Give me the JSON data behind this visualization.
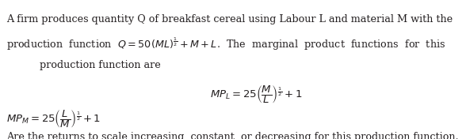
{
  "bg_color": "#ffffff",
  "text_color": "#231f20",
  "figsize": [
    5.93,
    1.76
  ],
  "dpi": 100,
  "line1": "A firm produces quantity Q of breakfast cereal using Labour L and material M with the",
  "line2": "production  function  $Q = 50(ML)^{\\frac{1}{2}} + M + L$.  The  marginal  product  functions  for  this",
  "line3": "production function are",
  "MPL_label": "$MP_L = 25\\left(\\dfrac{M}{L}\\right)^{\\frac{1}{2}} + 1$",
  "MPM_label": "$MP_M = 25\\left(\\dfrac{L}{M}\\right)^{\\frac{1}{2}} + 1$",
  "line_last": "Are the returns to scale increasing, constant, or decreasing for this production function.",
  "font_size": 9.2,
  "math_font_size": 9.5,
  "font_family": "serif"
}
